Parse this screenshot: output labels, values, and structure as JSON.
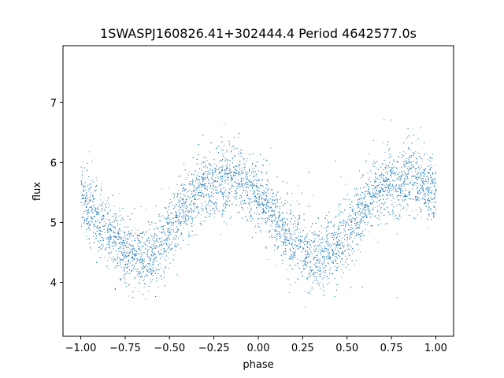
{
  "chart_data": {
    "type": "scatter",
    "title": "1SWASPJ160826.41+302444.4 Period 4642577.0s",
    "xlabel": "phase",
    "ylabel": "flux",
    "xlim": [
      -1.1,
      1.1
    ],
    "ylim": [
      3.1,
      7.95
    ],
    "xticks": [
      -1.0,
      -0.75,
      -0.5,
      -0.25,
      0.0,
      0.25,
      0.5,
      0.75,
      1.0
    ],
    "xtick_labels": [
      "−1.00",
      "−0.75",
      "−0.50",
      "−0.25",
      "0.00",
      "0.25",
      "0.50",
      "0.75",
      "1.00"
    ],
    "yticks": [
      4,
      5,
      6,
      7
    ],
    "ytick_labels": [
      "4",
      "5",
      "6",
      "7"
    ],
    "grid": false,
    "series": [
      {
        "color": "#1f77b4",
        "x_range": [
          -1.0,
          1.0
        ],
        "profile": {
          "phase": [
            0.0,
            0.05,
            0.1,
            0.15,
            0.2,
            0.25,
            0.3,
            0.35,
            0.4,
            0.45,
            0.5,
            0.55,
            0.6,
            0.65,
            0.7,
            0.75,
            0.8,
            0.85,
            0.9,
            0.95,
            1.0
          ],
          "flux": [
            5.5,
            5.25,
            5.0,
            4.85,
            4.7,
            4.55,
            4.45,
            4.4,
            4.5,
            4.65,
            4.85,
            5.1,
            5.3,
            5.5,
            5.6,
            5.65,
            5.7,
            5.75,
            5.7,
            5.55,
            5.5
          ]
        },
        "scatter_sigma": 0.28,
        "point_count_per_cycle": 5500
      }
    ]
  }
}
